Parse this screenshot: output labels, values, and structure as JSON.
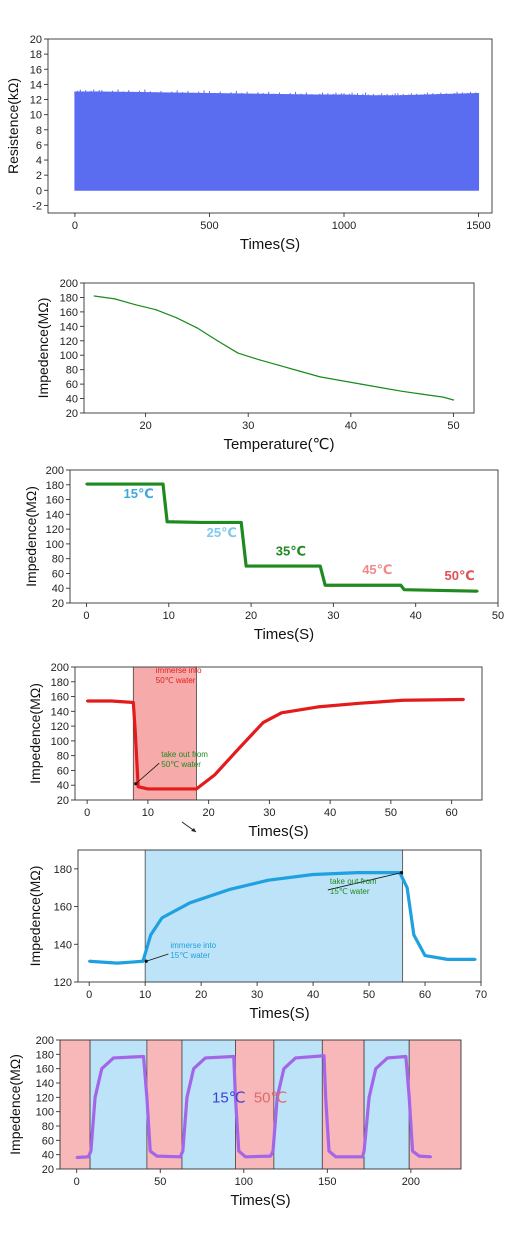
{
  "chart_data": [
    {
      "type": "area",
      "xlabel": "Times(S)",
      "ylabel": "Resistence(kΩ)",
      "xlim": [
        -100,
        1550
      ],
      "ylim": [
        -3,
        20
      ],
      "xticks": [
        0,
        500,
        1000,
        1500
      ],
      "yticks": [
        -2,
        0,
        2,
        4,
        6,
        8,
        10,
        12,
        14,
        16,
        18,
        20
      ],
      "series": [
        {
          "color": "#5a6cf0",
          "x": [
            0,
            100,
            300,
            500,
            700,
            900,
            1000,
            1100,
            1200,
            1300,
            1400,
            1500
          ],
          "y_low": [
            0,
            0,
            0,
            0,
            0,
            0,
            0,
            0,
            0,
            0,
            0,
            0
          ],
          "y_high": [
            13.0,
            13.0,
            12.9,
            12.8,
            12.7,
            12.6,
            12.6,
            12.5,
            12.5,
            12.6,
            12.7,
            12.8
          ]
        }
      ],
      "grid": false
    },
    {
      "type": "line",
      "xlabel": "Temperature(℃)",
      "ylabel": "Impedence(MΩ)",
      "xlim": [
        14,
        52
      ],
      "ylim": [
        20,
        200
      ],
      "xticks": [
        20,
        30,
        40,
        50
      ],
      "yticks": [
        20,
        40,
        60,
        80,
        100,
        120,
        140,
        160,
        180,
        200
      ],
      "series": [
        {
          "color": "#1a8a1a",
          "x": [
            15,
            17,
            19,
            21,
            23,
            25,
            27,
            29,
            31,
            33,
            35,
            37,
            39,
            41,
            43,
            45,
            47,
            49,
            50
          ],
          "y": [
            182,
            178,
            170,
            163,
            152,
            138,
            120,
            103,
            94,
            86,
            78,
            70,
            65,
            60,
            55,
            50,
            46,
            42,
            38
          ]
        }
      ],
      "grid": false
    },
    {
      "type": "line",
      "xlabel": "Times(S)",
      "ylabel": "Impedence(MΩ)",
      "xlim": [
        -2,
        50
      ],
      "ylim": [
        20,
        200
      ],
      "xticks": [
        0,
        10,
        20,
        30,
        40,
        50
      ],
      "yticks": [
        20,
        40,
        60,
        80,
        100,
        120,
        140,
        160,
        180,
        200
      ],
      "series": [
        {
          "color": "#1f8a1f",
          "x": [
            0,
            5,
            9.3,
            9.8,
            14,
            18.8,
            19.4,
            25,
            28.4,
            29,
            34,
            38.2,
            38.6,
            43,
            47.5
          ],
          "y": [
            181,
            181,
            181,
            130,
            129,
            129,
            70,
            70,
            70,
            44,
            44,
            44,
            38,
            37,
            36
          ]
        }
      ],
      "annotations": [
        {
          "text": "15℃",
          "x": 4.5,
          "y": 162,
          "color": "#3fa7e0"
        },
        {
          "text": "25℃",
          "x": 14.6,
          "y": 109,
          "color": "#7fc8ee"
        },
        {
          "text": "35℃",
          "x": 23,
          "y": 84,
          "color": "#1f8a1f"
        },
        {
          "text": "45℃",
          "x": 33.5,
          "y": 59,
          "color": "#f08a8a"
        },
        {
          "text": "50℃",
          "x": 43.5,
          "y": 51,
          "color": "#e05050"
        }
      ],
      "grid": false
    },
    {
      "type": "line",
      "xlabel": "Times(S)",
      "ylabel": "Impedence(MΩ)",
      "xlim": [
        -2,
        65
      ],
      "ylim": [
        20,
        200
      ],
      "xticks": [
        0,
        10,
        20,
        30,
        40,
        50,
        60
      ],
      "yticks": [
        20,
        40,
        60,
        80,
        100,
        120,
        140,
        160,
        180,
        200
      ],
      "shaded": [
        {
          "from": 7.6,
          "to": 18,
          "color": "#f6aaaa"
        }
      ],
      "series": [
        {
          "color": "#e21c1c",
          "x": [
            0,
            4,
            7.6,
            7.9,
            8.4,
            10,
            18,
            21,
            25,
            29,
            32,
            38,
            45,
            52,
            62
          ],
          "y": [
            154,
            154,
            152,
            115,
            38,
            35,
            35,
            54,
            90,
            125,
            138,
            146,
            151,
            155,
            156
          ]
        }
      ],
      "annotations": [
        {
          "lines": [
            "immerse into",
            "50℃ water"
          ],
          "x": 11.3,
          "y": 192,
          "color": "#e21c1c"
        },
        {
          "lines": [
            "take out from",
            "50℃ water"
          ],
          "x": 12.2,
          "y": 78,
          "color": "#1f8a1f",
          "arrow_to": [
            8,
            42
          ]
        }
      ],
      "grid": false
    },
    {
      "type": "line",
      "xlabel": "Times(S)",
      "ylabel": "Impedence(MΩ)",
      "xlim": [
        -2,
        70
      ],
      "ylim": [
        120,
        190
      ],
      "xticks": [
        0,
        10,
        20,
        30,
        40,
        50,
        60,
        70
      ],
      "yticks": [
        120,
        140,
        160,
        180
      ],
      "shaded": [
        {
          "from": 10,
          "to": 56,
          "color": "#bde3f8"
        }
      ],
      "series": [
        {
          "color": "#1fa0e0",
          "x": [
            0,
            5,
            9.6,
            11,
            13,
            18,
            25,
            32,
            40,
            48,
            55.5,
            56.8,
            58,
            60,
            64,
            69
          ],
          "y": [
            131,
            130,
            131,
            145,
            154,
            162,
            169,
            174,
            177,
            178,
            178,
            170,
            145,
            134,
            132,
            132
          ]
        }
      ],
      "annotations": [
        {
          "lines": [
            "immerse into",
            "15℃ water"
          ],
          "x": 14.5,
          "y": 138,
          "color": "#1fa0e0",
          "arrow_to": [
            10.2,
            131
          ]
        },
        {
          "lines": [
            "take out from",
            "15℃ water"
          ],
          "x": 43,
          "y": 172,
          "color": "#1f8a1f",
          "arrow_to": [
            55.8,
            178
          ]
        }
      ],
      "grid": false
    },
    {
      "type": "line",
      "xlabel": "Times(S)",
      "ylabel": "Impedence(MΩ)",
      "xlim": [
        -10,
        230
      ],
      "ylim": [
        20,
        200
      ],
      "xticks": [
        0,
        50,
        100,
        150,
        200
      ],
      "yticks": [
        20,
        40,
        60,
        80,
        100,
        120,
        140,
        160,
        180,
        200
      ],
      "shaded": [
        {
          "from": -10,
          "to": 8,
          "color": "#f8b7b8"
        },
        {
          "from": 8,
          "to": 42,
          "color": "#bde3f8"
        },
        {
          "from": 42,
          "to": 63,
          "color": "#f8b7b8"
        },
        {
          "from": 63,
          "to": 95,
          "color": "#bde3f8"
        },
        {
          "from": 95,
          "to": 118,
          "color": "#f8b7b8"
        },
        {
          "from": 118,
          "to": 147,
          "color": "#bde3f8"
        },
        {
          "from": 147,
          "to": 172,
          "color": "#f8b7b8"
        },
        {
          "from": 172,
          "to": 199,
          "color": "#bde3f8"
        },
        {
          "from": 199,
          "to": 230,
          "color": "#f8b7b8"
        }
      ],
      "series": [
        {
          "color": "#a366e8",
          "x": [
            0,
            7,
            8.5,
            11,
            15,
            22,
            40,
            42,
            44,
            48,
            62,
            63.5,
            66,
            70,
            77,
            94,
            95,
            97,
            101,
            116,
            117.5,
            120,
            124,
            131,
            148,
            149,
            151,
            155,
            171,
            172,
            175,
            179,
            186,
            197,
            199,
            201,
            205,
            212
          ],
          "y": [
            36,
            37,
            45,
            120,
            160,
            175,
            177,
            120,
            45,
            38,
            37,
            45,
            120,
            160,
            175,
            177,
            120,
            45,
            37,
            38,
            45,
            120,
            160,
            175,
            178,
            120,
            45,
            37,
            37,
            45,
            120,
            160,
            175,
            177,
            120,
            45,
            38,
            37
          ]
        }
      ],
      "annotations": [
        {
          "text": "15℃",
          "x": 81,
          "y": 113,
          "color": "#3b3fd8"
        },
        {
          "text": "50℃",
          "x": 106,
          "y": 113,
          "color": "#e06a6a"
        }
      ],
      "grid": false
    }
  ]
}
